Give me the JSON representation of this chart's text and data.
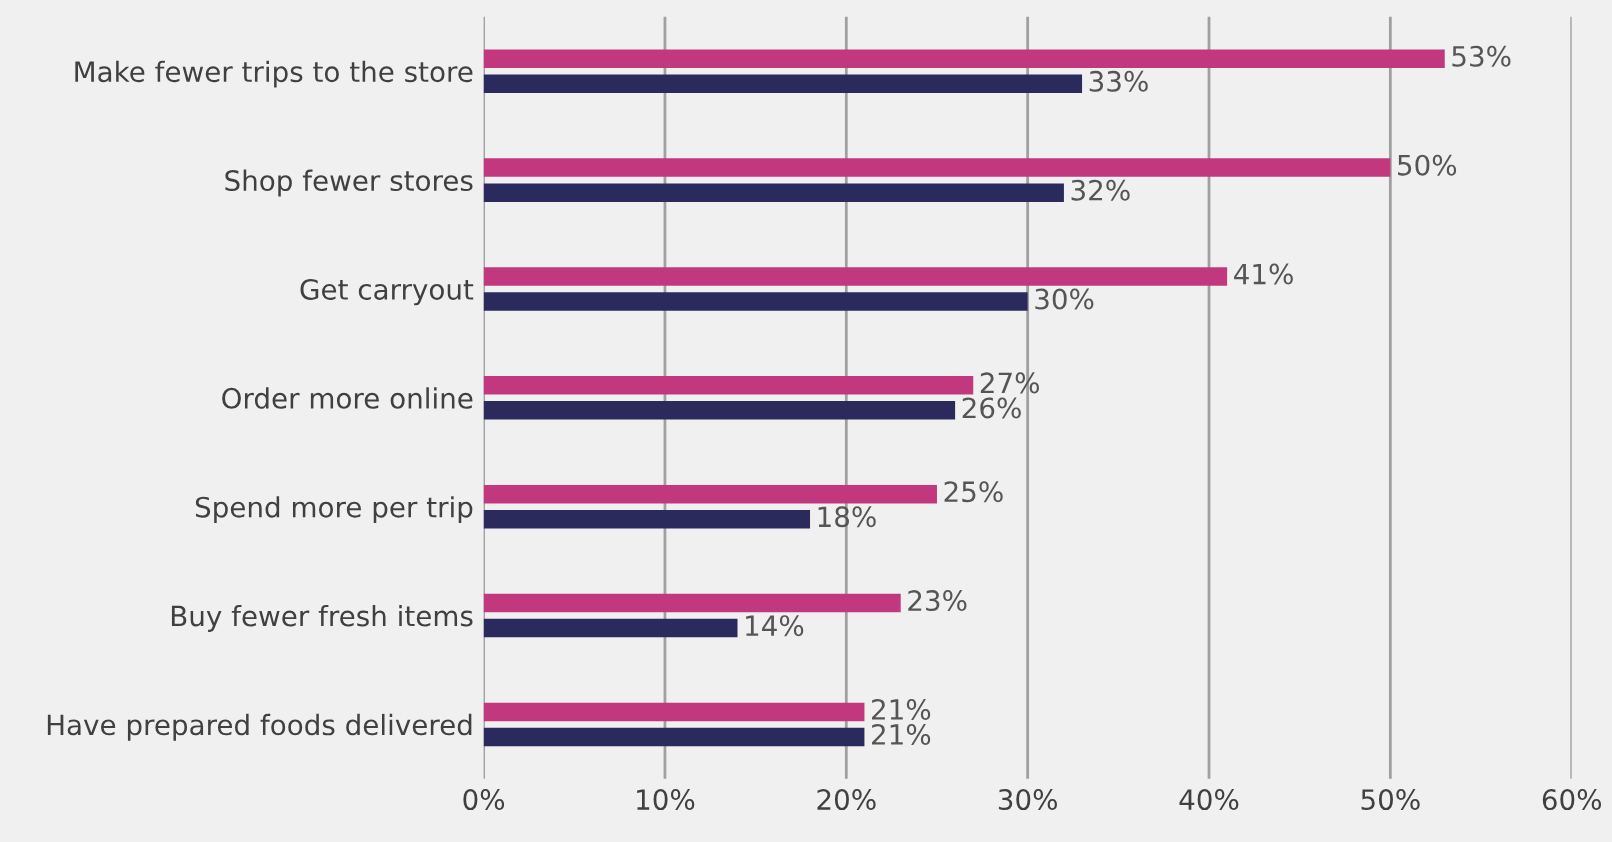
{
  "chart_data": {
    "type": "bar",
    "orientation": "horizontal",
    "categories": [
      "Make fewer trips to the store",
      "Shop fewer stores",
      "Get carryout",
      "Order more online",
      "Spend more per trip",
      "Buy fewer fresh items",
      "Have prepared foods delivered"
    ],
    "series": [
      {
        "color": "#c2387e",
        "values": [
          53,
          50,
          41,
          27,
          25,
          23,
          21
        ],
        "value_labels": [
          "53%",
          "50%",
          "41%",
          "27%",
          "25%",
          "23%",
          "21%"
        ]
      },
      {
        "color": "#2b2a5c",
        "values": [
          33,
          32,
          30,
          26,
          18,
          14,
          21
        ],
        "value_labels": [
          "33%",
          "32%",
          "30%",
          "26%",
          "18%",
          "14%",
          "21%"
        ]
      }
    ],
    "xlim": [
      0,
      60
    ],
    "xticks": [
      {
        "value": 0,
        "label": "0%"
      },
      {
        "value": 10,
        "label": "10%"
      },
      {
        "value": 20,
        "label": "20%"
      },
      {
        "value": 30,
        "label": "30%"
      },
      {
        "value": 40,
        "label": "40%"
      },
      {
        "value": 50,
        "label": "50%"
      },
      {
        "value": 60,
        "label": "60%"
      }
    ],
    "grid": "x"
  }
}
